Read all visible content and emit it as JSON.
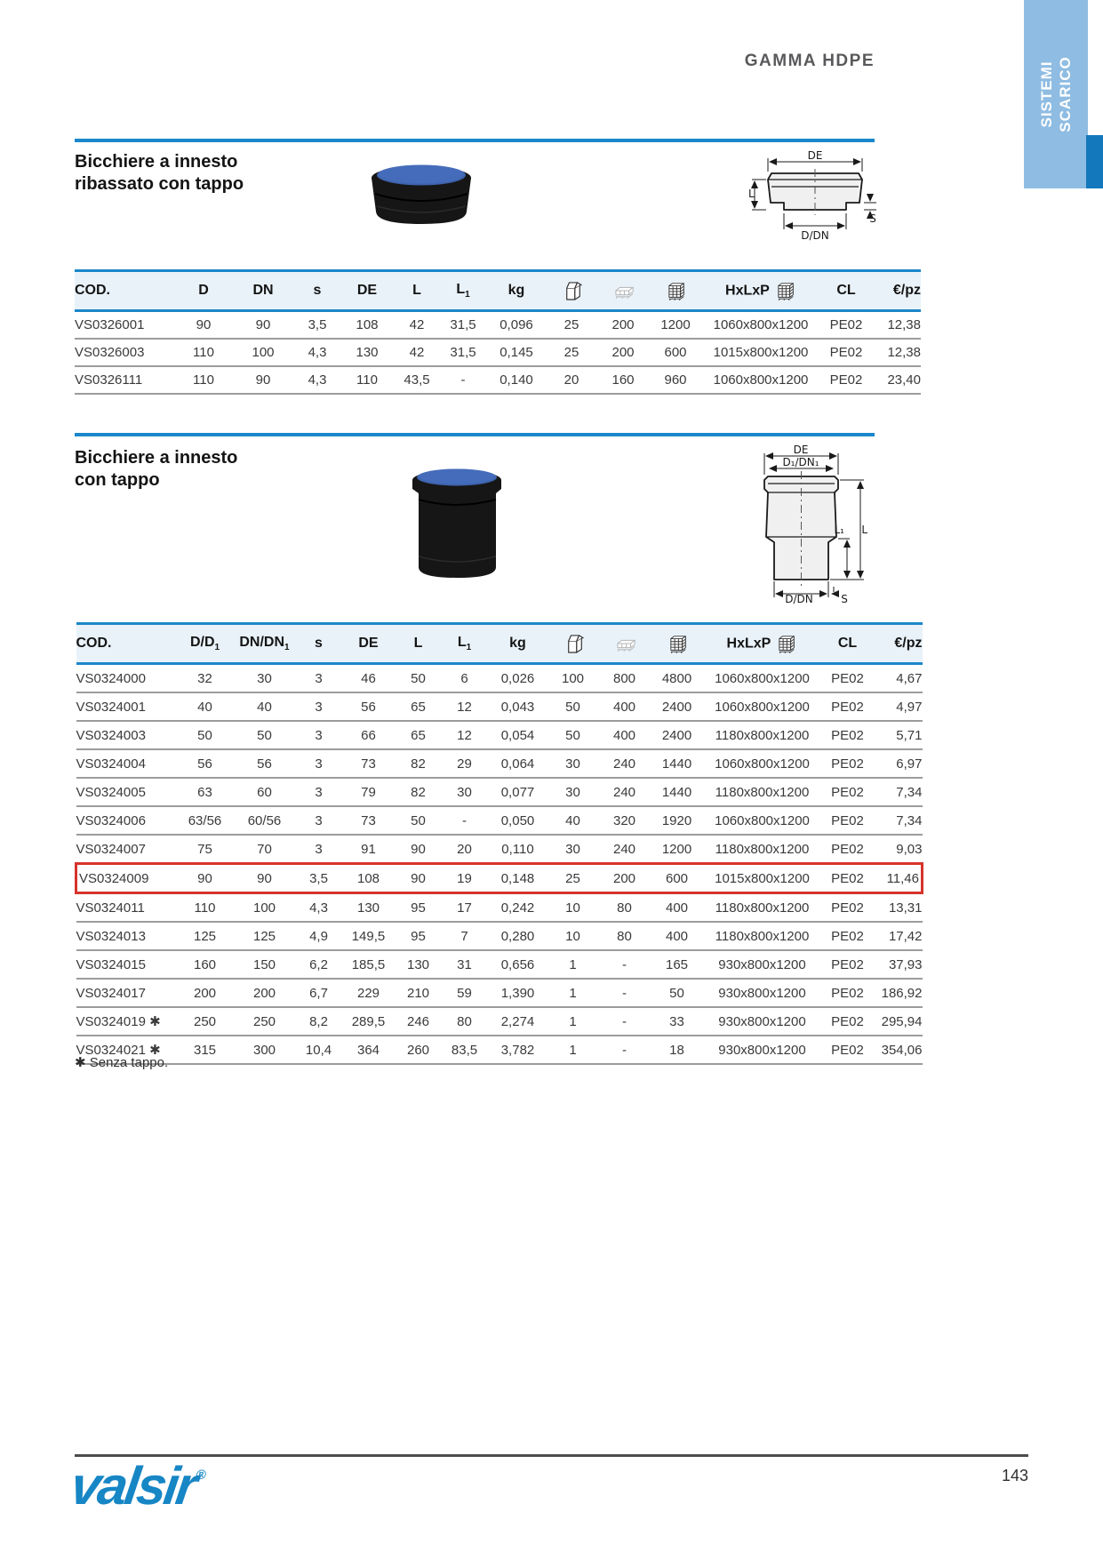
{
  "page": {
    "header_title": "GAMMA HDPE",
    "side_tab_line1": "SISTEMI",
    "side_tab_line2": "SCARICO",
    "page_number": "143",
    "brand": "valsir",
    "brand_reg": "®",
    "footnote": "✱ Senza tappo."
  },
  "colors": {
    "accent_blue": "#1b87c9",
    "tab_light_blue": "#8fbce2",
    "tab_dark_blue": "#1478bc",
    "table_header_bg": "#e9f2f9",
    "highlight_red": "#d6332b",
    "logo_blue": "#1786c5",
    "product_cap_blue": "#3e63ae"
  },
  "section1": {
    "title_line1": "Bicchiere a innesto",
    "title_line2": "ribassato con tappo",
    "diagram_labels": {
      "de": "DE",
      "l": "L",
      "s": "S",
      "ddn": "D/DN"
    }
  },
  "section2": {
    "title_line1": "Bicchiere a innesto",
    "title_line2": "con tappo",
    "diagram_labels": {
      "de": "DE",
      "d1dn1": "D₁/DN₁",
      "l": "L",
      "l1": "L₁",
      "s": "S",
      "ddn": "D/DN"
    }
  },
  "table1": {
    "headers": [
      {
        "label": "COD."
      },
      {
        "label": "D"
      },
      {
        "label": "DN"
      },
      {
        "label": "s"
      },
      {
        "label": "DE"
      },
      {
        "label": "L"
      },
      {
        "label": "L",
        "sub": "1"
      },
      {
        "label": "kg"
      },
      {
        "icon": "carton-icon"
      },
      {
        "icon": "pallet-layer-icon"
      },
      {
        "icon": "pallet-stack-icon"
      },
      {
        "label": "HxLxP",
        "icon": "pallet-stack-icon"
      },
      {
        "label": "CL"
      },
      {
        "label": "€/pz"
      }
    ],
    "rows": [
      [
        "VS0326001",
        "90",
        "90",
        "3,5",
        "108",
        "42",
        "31,5",
        "0,096",
        "25",
        "200",
        "1200",
        "1060x800x1200",
        "PE02",
        "12,38"
      ],
      [
        "VS0326003",
        "110",
        "100",
        "4,3",
        "130",
        "42",
        "31,5",
        "0,145",
        "25",
        "200",
        "600",
        "1015x800x1200",
        "PE02",
        "12,38"
      ],
      [
        "VS0326111",
        "110",
        "90",
        "4,3",
        "110",
        "43,5",
        "-",
        "0,140",
        "20",
        "160",
        "960",
        "1060x800x1200",
        "PE02",
        "23,40"
      ]
    ]
  },
  "table2": {
    "headers": [
      {
        "label": "COD."
      },
      {
        "label": "D/D",
        "sub": "1"
      },
      {
        "label": "DN/DN",
        "sub": "1"
      },
      {
        "label": "s"
      },
      {
        "label": "DE"
      },
      {
        "label": "L"
      },
      {
        "label": "L",
        "sub": "1"
      },
      {
        "label": "kg"
      },
      {
        "icon": "carton-icon"
      },
      {
        "icon": "pallet-layer-icon"
      },
      {
        "icon": "pallet-stack-icon"
      },
      {
        "label": "HxLxP",
        "icon": "pallet-stack-icon"
      },
      {
        "label": "CL"
      },
      {
        "label": "€/pz"
      }
    ],
    "highlight_row": 7,
    "rows": [
      [
        "VS0324000",
        "32",
        "30",
        "3",
        "46",
        "50",
        "6",
        "0,026",
        "100",
        "800",
        "4800",
        "1060x800x1200",
        "PE02",
        "4,67"
      ],
      [
        "VS0324001",
        "40",
        "40",
        "3",
        "56",
        "65",
        "12",
        "0,043",
        "50",
        "400",
        "2400",
        "1060x800x1200",
        "PE02",
        "4,97"
      ],
      [
        "VS0324003",
        "50",
        "50",
        "3",
        "66",
        "65",
        "12",
        "0,054",
        "50",
        "400",
        "2400",
        "1180x800x1200",
        "PE02",
        "5,71"
      ],
      [
        "VS0324004",
        "56",
        "56",
        "3",
        "73",
        "82",
        "29",
        "0,064",
        "30",
        "240",
        "1440",
        "1060x800x1200",
        "PE02",
        "6,97"
      ],
      [
        "VS0324005",
        "63",
        "60",
        "3",
        "79",
        "82",
        "30",
        "0,077",
        "30",
        "240",
        "1440",
        "1180x800x1200",
        "PE02",
        "7,34"
      ],
      [
        "VS0324006",
        "63/56",
        "60/56",
        "3",
        "73",
        "50",
        "-",
        "0,050",
        "40",
        "320",
        "1920",
        "1060x800x1200",
        "PE02",
        "7,34"
      ],
      [
        "VS0324007",
        "75",
        "70",
        "3",
        "91",
        "90",
        "20",
        "0,110",
        "30",
        "240",
        "1200",
        "1180x800x1200",
        "PE02",
        "9,03"
      ],
      [
        "VS0324009",
        "90",
        "90",
        "3,5",
        "108",
        "90",
        "19",
        "0,148",
        "25",
        "200",
        "600",
        "1015x800x1200",
        "PE02",
        "11,46"
      ],
      [
        "VS0324011",
        "110",
        "100",
        "4,3",
        "130",
        "95",
        "17",
        "0,242",
        "10",
        "80",
        "400",
        "1180x800x1200",
        "PE02",
        "13,31"
      ],
      [
        "VS0324013",
        "125",
        "125",
        "4,9",
        "149,5",
        "95",
        "7",
        "0,280",
        "10",
        "80",
        "400",
        "1180x800x1200",
        "PE02",
        "17,42"
      ],
      [
        "VS0324015",
        "160",
        "150",
        "6,2",
        "185,5",
        "130",
        "31",
        "0,656",
        "1",
        "-",
        "165",
        "930x800x1200",
        "PE02",
        "37,93"
      ],
      [
        "VS0324017",
        "200",
        "200",
        "6,7",
        "229",
        "210",
        "59",
        "1,390",
        "1",
        "-",
        "50",
        "930x800x1200",
        "PE02",
        "186,92"
      ],
      [
        "VS0324019 ✱",
        "250",
        "250",
        "8,2",
        "289,5",
        "246",
        "80",
        "2,274",
        "1",
        "-",
        "33",
        "930x800x1200",
        "PE02",
        "295,94"
      ],
      [
        "VS0324021 ✱",
        "315",
        "300",
        "10,4",
        "364",
        "260",
        "83,5",
        "3,782",
        "1",
        "-",
        "18",
        "930x800x1200",
        "PE02",
        "354,06"
      ]
    ]
  }
}
